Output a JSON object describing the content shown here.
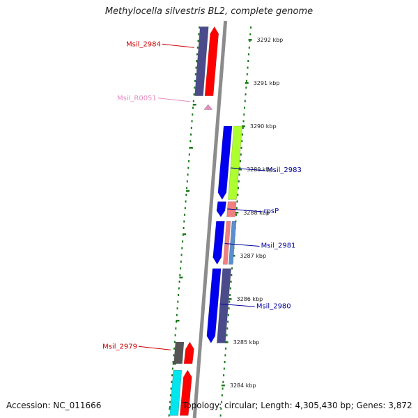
{
  "title": "Methylocella silvestris BL2, complete genome",
  "footer": {
    "accession": "Accession: NC_011666",
    "topology": "Topology: circular; Length: 4,305,430 bp; Genes: 3,872"
  },
  "colors": {
    "backbone": "#8c8c8c",
    "tick": "#1a7a1a",
    "label_red": "#cc0000",
    "label_blue": "#000099",
    "label_pink": "#e68cc0"
  },
  "ticks": [
    {
      "kbp": 3292,
      "label": "3292 kbp"
    },
    {
      "kbp": 3291,
      "label": "3291 kbp"
    },
    {
      "kbp": 3290,
      "label": "3290 kbp"
    },
    {
      "kbp": 3289,
      "label": "3289 kbp"
    },
    {
      "kbp": 3288,
      "label": "3288 kbp"
    },
    {
      "kbp": 3287,
      "label": "3287 kbp"
    },
    {
      "kbp": 3286,
      "label": "3286 kbp"
    },
    {
      "kbp": 3285,
      "label": "3285 kbp"
    },
    {
      "kbp": 3284,
      "label": "3284 kbp"
    }
  ],
  "features": [
    {
      "lane": -2,
      "start": 3292.3,
      "end": 3290.7,
      "dir": "none",
      "color": "#4b4b8c"
    },
    {
      "lane": -1,
      "start": 3292.3,
      "end": 3290.7,
      "dir": "up",
      "color": "#ff0000"
    },
    {
      "lane": -1,
      "start": 3290.5,
      "end": 3290.38,
      "dir": "up",
      "color": "#e68cc0"
    },
    {
      "lane": 1,
      "start": 3290.0,
      "end": 3288.3,
      "dir": "down",
      "color": "#0000ee"
    },
    {
      "lane": 2,
      "start": 3290.0,
      "end": 3288.3,
      "dir": "none",
      "color": "#adff2f"
    },
    {
      "lane": 1,
      "start": 3288.25,
      "end": 3287.9,
      "dir": "down",
      "color": "#0000ee"
    },
    {
      "lane": 2,
      "start": 3288.25,
      "end": 3287.9,
      "dir": "none",
      "color": "#f08080"
    },
    {
      "lane": 1,
      "start": 3287.8,
      "end": 3286.8,
      "dir": "down",
      "color": "#0000ee"
    },
    {
      "lane": 1.8,
      "start": 3287.8,
      "end": 3286.8,
      "dir": "none",
      "color": "#f08080",
      "narrow": true
    },
    {
      "lane": 2.35,
      "start": 3287.8,
      "end": 3286.8,
      "dir": "none",
      "color": "#5a8fcf",
      "narrow": true
    },
    {
      "lane": 1,
      "start": 3286.7,
      "end": 3284.98,
      "dir": "down",
      "color": "#0000ee"
    },
    {
      "lane": 2,
      "start": 3286.7,
      "end": 3284.98,
      "dir": "none",
      "color": "#4b4b8c"
    },
    {
      "lane": -2,
      "start": 3285.0,
      "end": 3284.5,
      "dir": "none",
      "color": "#555555"
    },
    {
      "lane": -1,
      "start": 3285.0,
      "end": 3284.5,
      "dir": "up",
      "color": "#ff0000"
    },
    {
      "lane": -2,
      "start": 3284.35,
      "end": 3283.3,
      "dir": "none",
      "color": "#00e5ee"
    },
    {
      "lane": -1,
      "start": 3284.35,
      "end": 3283.3,
      "dir": "up",
      "color": "#ff0000"
    }
  ],
  "labels": [
    {
      "text": "Msil_2984",
      "color": "#cc0000",
      "side": "left",
      "kbp": 3291.85
    },
    {
      "text": "Msil_R0051",
      "color": "#e68cc0",
      "side": "left",
      "kbp": 3290.6
    },
    {
      "text": "Msil_2983",
      "color": "#000099",
      "side": "right",
      "kbp": 3289.0
    },
    {
      "text": "rpsP",
      "color": "#000099",
      "side": "right",
      "kbp": 3288.05
    },
    {
      "text": "Msil_2981",
      "color": "#000099",
      "side": "right",
      "kbp": 3287.25
    },
    {
      "text": "Msil_2980",
      "color": "#000099",
      "side": "right",
      "kbp": 3285.85
    },
    {
      "text": "Msil_2979",
      "color": "#cc0000",
      "side": "left",
      "kbp": 3284.85
    }
  ]
}
